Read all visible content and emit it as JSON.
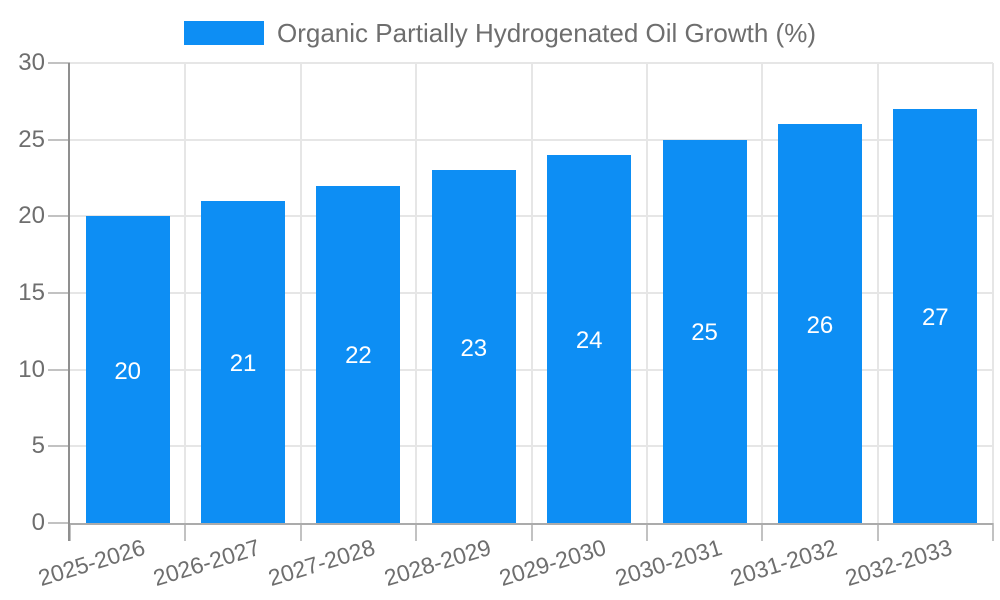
{
  "legend": {
    "label": "Organic Partially Hydrogenated Oil Growth (%)"
  },
  "colors": {
    "bar": "#0d8ef4",
    "grid": "#e6e6e6",
    "tick_mark": "#c2c2c2",
    "y_axis_line": "#8f8f8f",
    "x_axis_line": "#ababab",
    "tick_label": "#6e6e6e",
    "data_label": "#ffffff",
    "background": "#ffffff"
  },
  "chart_data": {
    "type": "bar",
    "title": "",
    "xlabel": "",
    "ylabel": "",
    "categories": [
      "2025-2026",
      "2026-2027",
      "2027-2028",
      "2028-2029",
      "2029-2030",
      "2030-2031",
      "2031-2032",
      "2032-2033"
    ],
    "series": [
      {
        "name": "Organic Partially Hydrogenated Oil Growth (%)",
        "values": [
          20,
          21,
          22,
          23,
          24,
          25,
          26,
          27
        ]
      }
    ],
    "ylim": [
      0,
      30
    ],
    "yticks": [
      0,
      5,
      10,
      15,
      20,
      25,
      30
    ],
    "grid": true,
    "legend_position": "top",
    "x_tick_rotation_deg": -17,
    "data_labels_position": "inside-center"
  }
}
